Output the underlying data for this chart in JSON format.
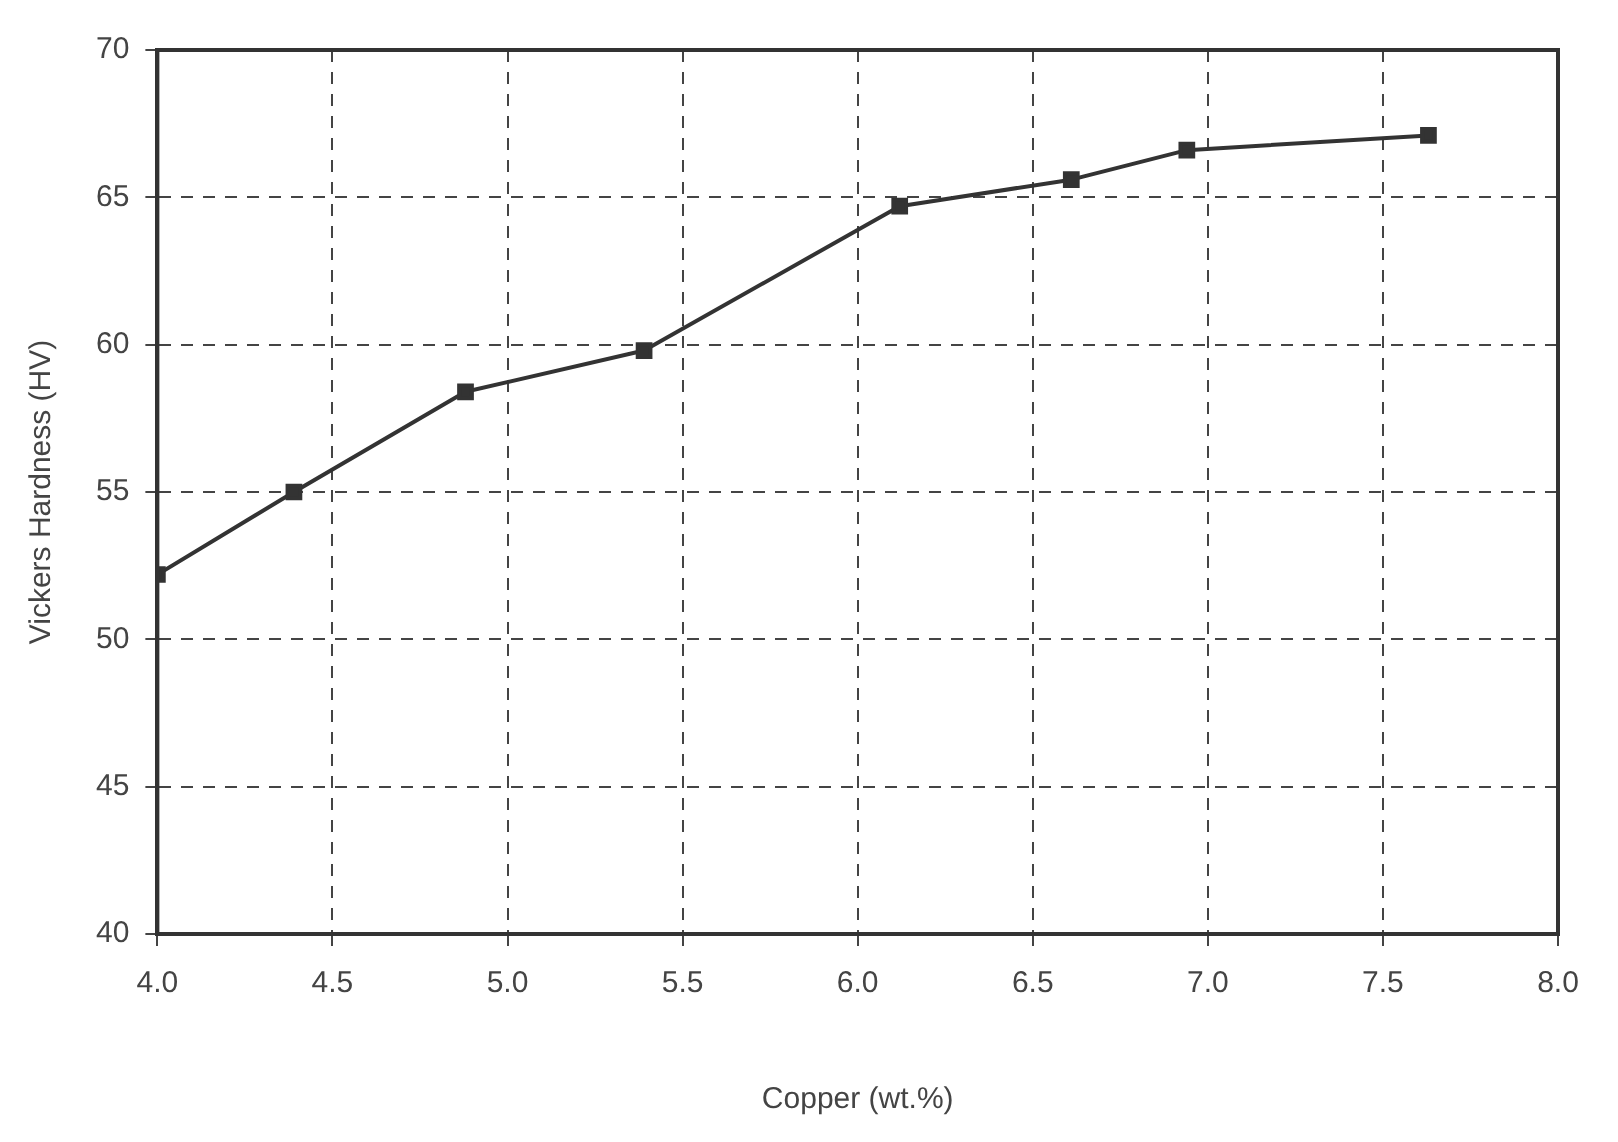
{
  "chart_data": {
    "type": "line",
    "xlabel": "Copper (wt.%)",
    "ylabel": "Vickers Hardness (HV)",
    "x": [
      4.0,
      4.39,
      4.88,
      5.39,
      6.12,
      6.61,
      6.94,
      7.63
    ],
    "series": [
      {
        "color": "#333333",
        "values": [
          52.2,
          55.0,
          58.4,
          59.8,
          64.7,
          65.6,
          66.6,
          67.1
        ]
      }
    ],
    "xlim": [
      4.0,
      8.0
    ],
    "xticks": [
      {
        "value": 4,
        "label": "4.0"
      },
      4.5,
      {
        "value": 5,
        "label": "5.0"
      },
      5.5,
      {
        "value": 6,
        "label": "6.0"
      },
      6.5,
      {
        "value": 7,
        "label": "7.0"
      },
      7.5,
      {
        "value": 8,
        "label": "8.0"
      }
    ],
    "ylim": [
      40,
      70
    ],
    "yticks": [
      40,
      45,
      50,
      55,
      60,
      65,
      70
    ],
    "grid": true,
    "legend": false,
    "marker": "square",
    "line_style": "solid"
  }
}
